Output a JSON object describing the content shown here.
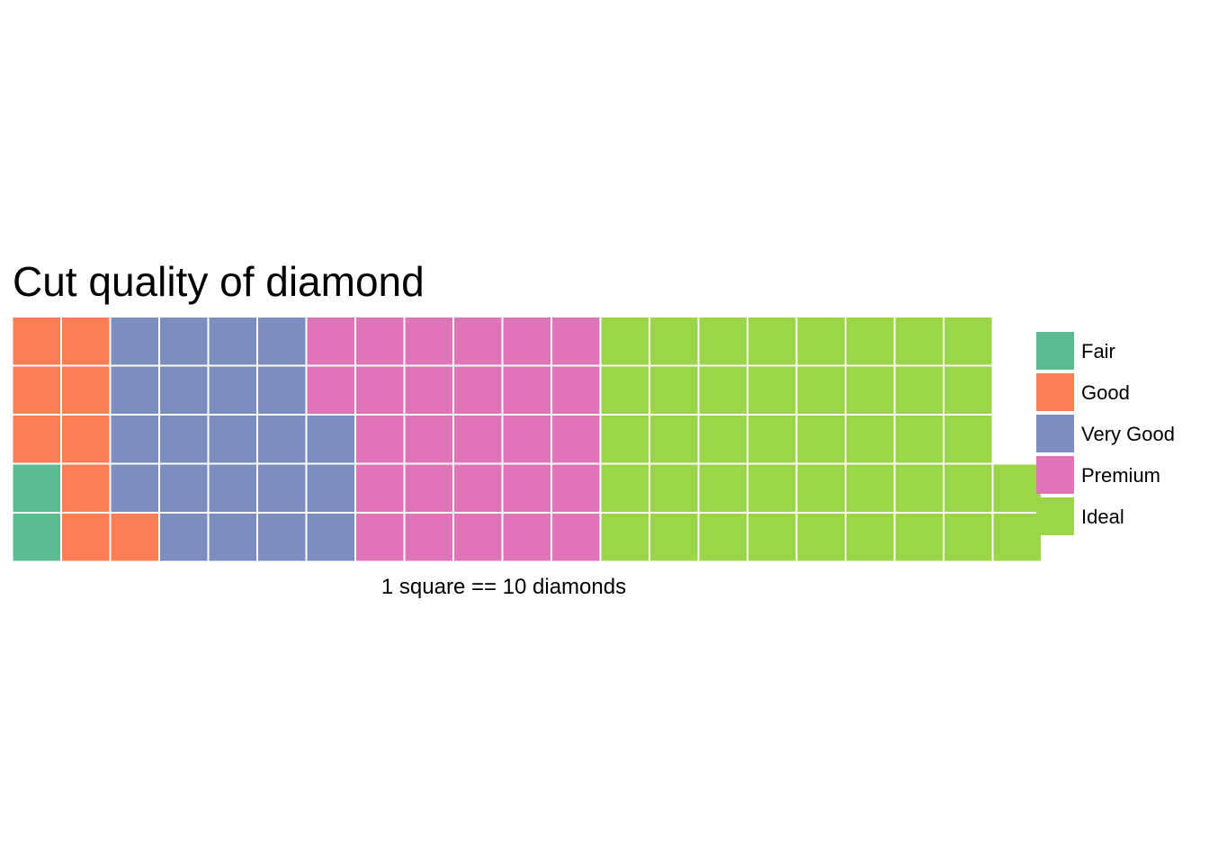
{
  "chart_data": {
    "type": "waffle",
    "title": "Cut quality of diamond",
    "xlabel": "1 square == 10 diamonds",
    "ylabel": "",
    "rows": 5,
    "unit": 10,
    "categories": [
      "Fair",
      "Good",
      "Very Good",
      "Premium",
      "Ideal"
    ],
    "values": [
      2,
      9,
      22,
      27,
      42
    ],
    "colors": [
      "#5BBC94",
      "#FC7E55",
      "#7C8DBF",
      "#E074B8",
      "#9BD548"
    ],
    "legend_position": "right",
    "grid": false
  }
}
